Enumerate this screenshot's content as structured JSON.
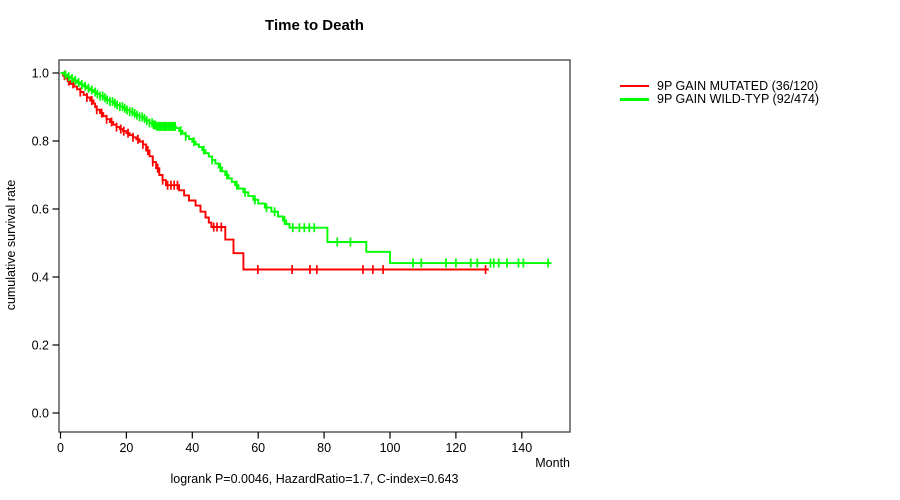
{
  "title": "Time to Death",
  "footer": "logrank P=0.0046, HazardRatio=1.7, C-index=0.643",
  "y_axis": {
    "label": "cumulative survival rate",
    "ticks": [
      {
        "label": "0.0",
        "value": 0.0
      },
      {
        "label": "0.2",
        "value": 0.2
      },
      {
        "label": "0.4",
        "value": 0.4
      },
      {
        "label": "0.6",
        "value": 0.6
      },
      {
        "label": "0.8",
        "value": 0.8
      },
      {
        "label": "1.0",
        "value": 1.0
      }
    ]
  },
  "x_axis": {
    "label": "Month",
    "ticks": [
      {
        "label": "0",
        "value": 0
      },
      {
        "label": "20",
        "value": 20
      },
      {
        "label": "40",
        "value": 40
      },
      {
        "label": "60",
        "value": 60
      },
      {
        "label": "80",
        "value": 80
      },
      {
        "label": "100",
        "value": 100
      },
      {
        "label": "120",
        "value": 120
      },
      {
        "label": "140",
        "value": 140
      }
    ]
  },
  "legend": [
    {
      "label": "9P GAIN MUTATED (36/120)",
      "color": "#ff0000"
    },
    {
      "label": "9P GAIN WILD-TYP (92/474)",
      "color": "#00ff00"
    }
  ],
  "colors": {
    "mutated": "#ff0000",
    "wildtype": "#00ff00",
    "axis": "#000000",
    "box": "#404040"
  },
  "chart_data": {
    "type": "line",
    "subtype": "kaplan-meier-step",
    "title": "Time to Death",
    "xlabel": "Month",
    "ylabel": "cumulative survival rate",
    "xlim": [
      0,
      152
    ],
    "ylim": [
      0.0,
      1.0
    ],
    "grid": false,
    "legend_position": "right-outside",
    "series": [
      {
        "name": "9P GAIN MUTATED (36/120)",
        "color": "#ff0000",
        "end_month": 130,
        "steps": [
          [
            0,
            1.0
          ],
          [
            0.8,
            0.992
          ],
          [
            1.5,
            0.984
          ],
          [
            2.2,
            0.976
          ],
          [
            3,
            0.968
          ],
          [
            4,
            0.96
          ],
          [
            5,
            0.952
          ],
          [
            6,
            0.944
          ],
          [
            7,
            0.936
          ],
          [
            8,
            0.928
          ],
          [
            9,
            0.919
          ],
          [
            10,
            0.91
          ],
          [
            10.5,
            0.9
          ],
          [
            11,
            0.892
          ],
          [
            12,
            0.882
          ],
          [
            13,
            0.873
          ],
          [
            14,
            0.864
          ],
          [
            15,
            0.856
          ],
          [
            16,
            0.848
          ],
          [
            17,
            0.841
          ],
          [
            18,
            0.835
          ],
          [
            19,
            0.829
          ],
          [
            20,
            0.823
          ],
          [
            21,
            0.817
          ],
          [
            22,
            0.811
          ],
          [
            23,
            0.805
          ],
          [
            24,
            0.798
          ],
          [
            25,
            0.79
          ],
          [
            26,
            0.772
          ],
          [
            27,
            0.755
          ],
          [
            28,
            0.738
          ],
          [
            29,
            0.72
          ],
          [
            30,
            0.7
          ],
          [
            31,
            0.685
          ],
          [
            32,
            0.67
          ],
          [
            36,
            0.655
          ],
          [
            37.5,
            0.64
          ],
          [
            39,
            0.625
          ],
          [
            41,
            0.61
          ],
          [
            42.5,
            0.592
          ],
          [
            44,
            0.575
          ],
          [
            45,
            0.56
          ],
          [
            45.8,
            0.547
          ],
          [
            50,
            0.51
          ],
          [
            52.5,
            0.47
          ],
          [
            55.5,
            0.422
          ]
        ],
        "censor_months": [
          1.2,
          2.5,
          3.8,
          6,
          8,
          9.5,
          11,
          12.5,
          14,
          15.5,
          17,
          18.3,
          19.2,
          20.5,
          22,
          23.5,
          25,
          26.5,
          28,
          29.5,
          31,
          32.5,
          33.5,
          34.5,
          35.5,
          46.5,
          47.5,
          48.8,
          59.9,
          70.3,
          75.7,
          77.8,
          91.8,
          94.8,
          97.9,
          129
        ]
      },
      {
        "name": "9P GAIN WILD-TYP (92/474)",
        "color": "#00ff00",
        "end_month": 149,
        "steps": [
          [
            0,
            1.0
          ],
          [
            1,
            0.995
          ],
          [
            2,
            0.989
          ],
          [
            3,
            0.984
          ],
          [
            4,
            0.978
          ],
          [
            5,
            0.972
          ],
          [
            6,
            0.966
          ],
          [
            7,
            0.961
          ],
          [
            8,
            0.955
          ],
          [
            9,
            0.95
          ],
          [
            10,
            0.944
          ],
          [
            11,
            0.938
          ],
          [
            12,
            0.932
          ],
          [
            13,
            0.927
          ],
          [
            14,
            0.921
          ],
          [
            15,
            0.916
          ],
          [
            16,
            0.911
          ],
          [
            17,
            0.906
          ],
          [
            18,
            0.901
          ],
          [
            19,
            0.896
          ],
          [
            20,
            0.891
          ],
          [
            21,
            0.886
          ],
          [
            22,
            0.881
          ],
          [
            23,
            0.876
          ],
          [
            24,
            0.871
          ],
          [
            25,
            0.866
          ],
          [
            26,
            0.86
          ],
          [
            27,
            0.853
          ],
          [
            28,
            0.847
          ],
          [
            29,
            0.843
          ],
          [
            35,
            0.838
          ],
          [
            36,
            0.83
          ],
          [
            37,
            0.822
          ],
          [
            38,
            0.814
          ],
          [
            39,
            0.806
          ],
          [
            40,
            0.798
          ],
          [
            41,
            0.79
          ],
          [
            42,
            0.782
          ],
          [
            43,
            0.773
          ],
          [
            44,
            0.764
          ],
          [
            45,
            0.754
          ],
          [
            46,
            0.744
          ],
          [
            47,
            0.734
          ],
          [
            48,
            0.722
          ],
          [
            49,
            0.711
          ],
          [
            50,
            0.7
          ],
          [
            51,
            0.69
          ],
          [
            52,
            0.68
          ],
          [
            53,
            0.67
          ],
          [
            54,
            0.66
          ],
          [
            55.5,
            0.649
          ],
          [
            57,
            0.638
          ],
          [
            58.5,
            0.627
          ],
          [
            60,
            0.616
          ],
          [
            62,
            0.604
          ],
          [
            64,
            0.592
          ],
          [
            66,
            0.578
          ],
          [
            67.5,
            0.566
          ],
          [
            68.5,
            0.556
          ],
          [
            69.5,
            0.545
          ],
          [
            81,
            0.503
          ],
          [
            92.8,
            0.474
          ],
          [
            100,
            0.441
          ]
        ],
        "censor_months": [
          1.5,
          2.5,
          3.5,
          4.5,
          5.5,
          6.5,
          7.5,
          8.5,
          9.5,
          10.5,
          11.2,
          12,
          12.8,
          13.5,
          14.2,
          15,
          15.8,
          16.5,
          17.2,
          18,
          18.8,
          19.5,
          20.2,
          21,
          21.8,
          22.5,
          23.2,
          24,
          24.8,
          25.5,
          26.2,
          27,
          27.8,
          28.3,
          28.8,
          29.3,
          29.8,
          30.3,
          30.8,
          31.3,
          31.8,
          32.3,
          32.8,
          33.3,
          33.8,
          34.3,
          34.8,
          36.5,
          38,
          40.5,
          43.5,
          46,
          48.5,
          50.5,
          53.5,
          56,
          59,
          62.5,
          65,
          68,
          70.5,
          72.5,
          74,
          75.5,
          77,
          84,
          88,
          107,
          109.5,
          117,
          120,
          124.5,
          126.5,
          130.5,
          131.5,
          133,
          135.5,
          139,
          140.5,
          148
        ]
      }
    ]
  }
}
